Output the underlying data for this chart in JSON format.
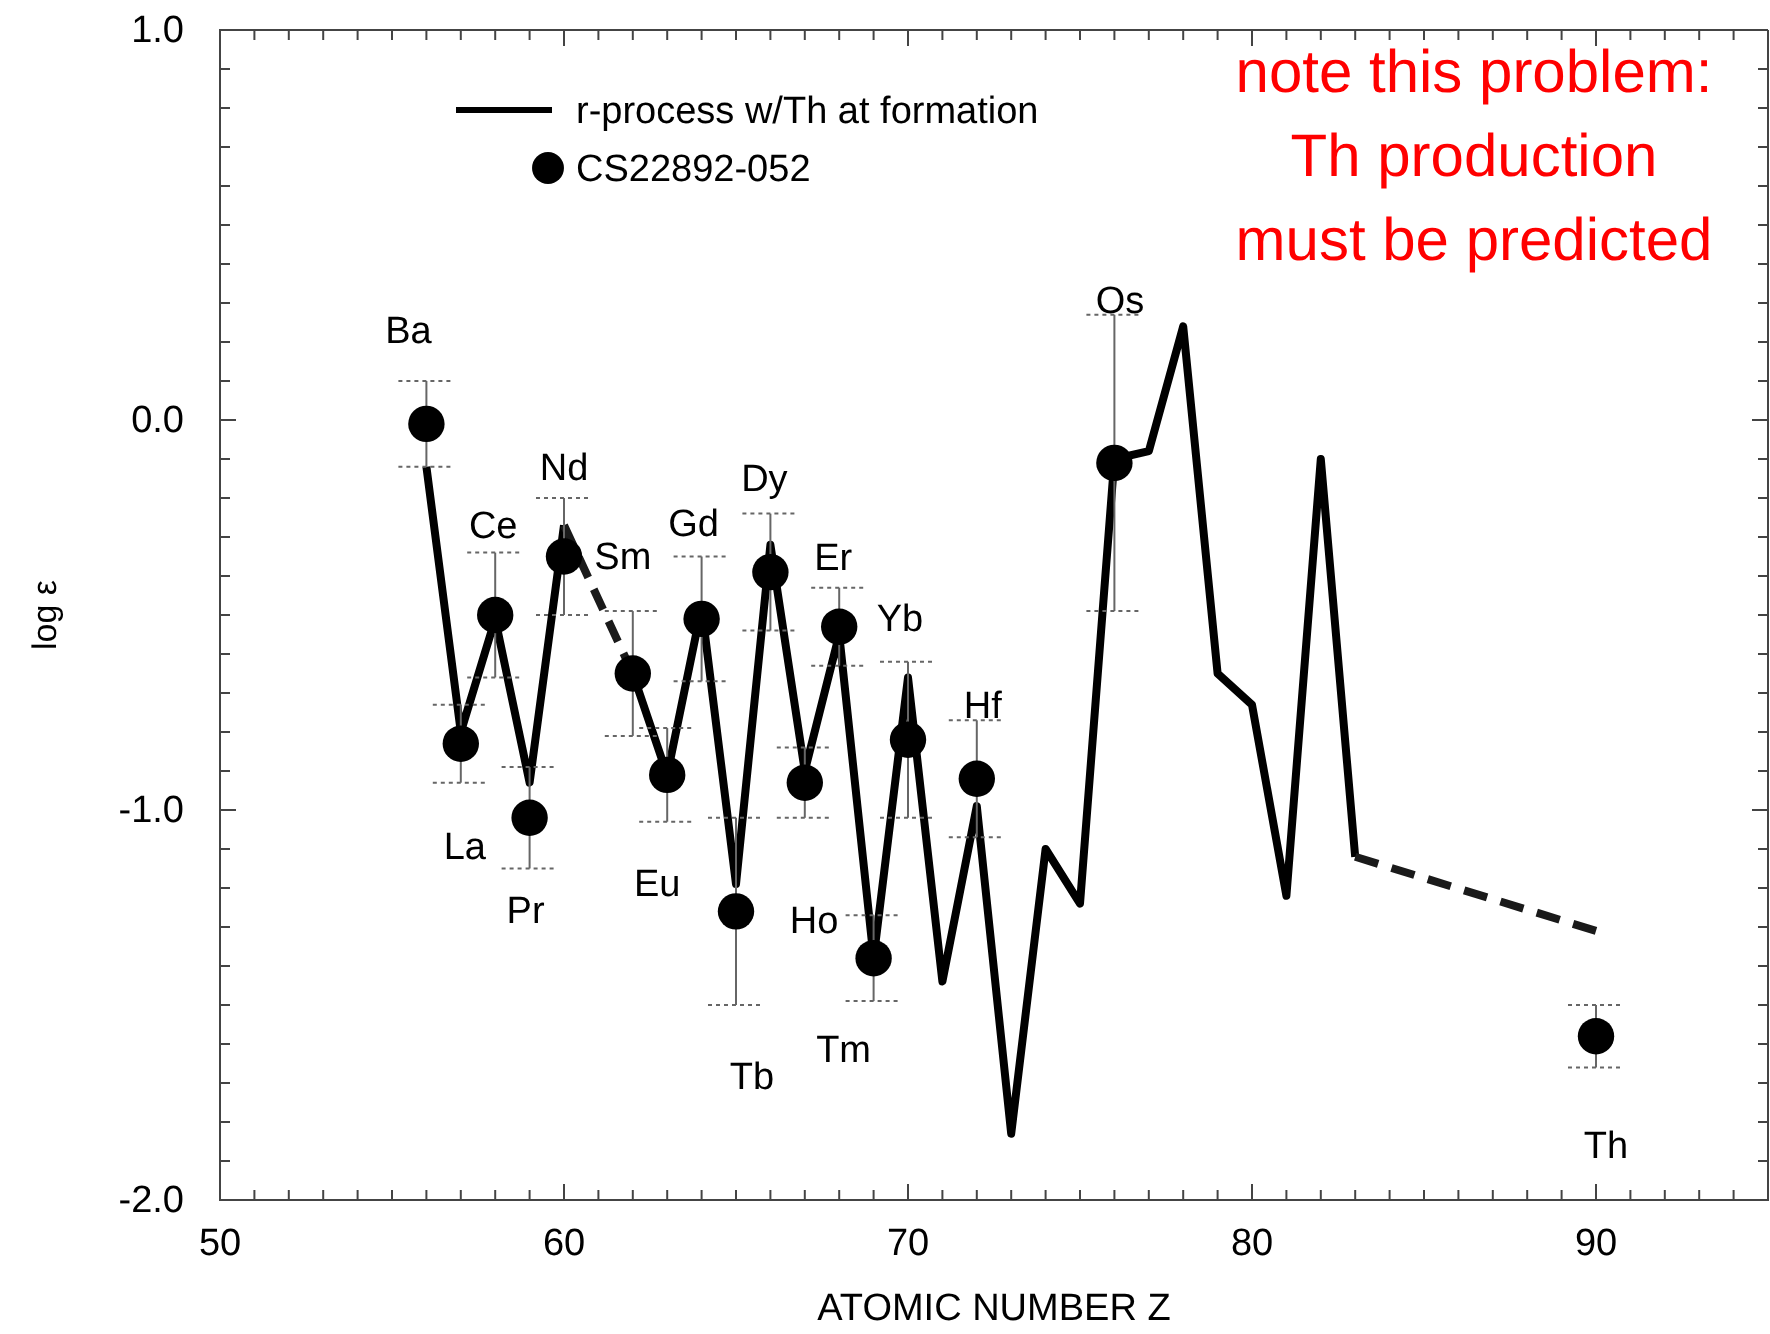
{
  "chart_data": {
    "type": "line",
    "xlabel": "ATOMIC NUMBER Z",
    "ylabel": "log ε",
    "xlim": [
      50,
      95
    ],
    "ylim": [
      -2,
      1
    ],
    "xticks": [
      50,
      {
        "value": 51,
        "label": null
      },
      {
        "value": 52,
        "label": null
      },
      {
        "value": 53,
        "label": null
      },
      {
        "value": 54,
        "label": null
      },
      {
        "value": 55,
        "label": null
      },
      {
        "value": 56,
        "label": null
      },
      {
        "value": 57,
        "label": null
      },
      {
        "value": 58,
        "label": null
      },
      {
        "value": 59,
        "label": null
      },
      60,
      {
        "value": 61,
        "label": null
      },
      {
        "value": 62,
        "label": null
      },
      {
        "value": 63,
        "label": null
      },
      {
        "value": 64,
        "label": null
      },
      {
        "value": 65,
        "label": null
      },
      {
        "value": 66,
        "label": null
      },
      {
        "value": 67,
        "label": null
      },
      {
        "value": 68,
        "label": null
      },
      {
        "value": 69,
        "label": null
      },
      70,
      {
        "value": 71,
        "label": null
      },
      {
        "value": 72,
        "label": null
      },
      {
        "value": 73,
        "label": null
      },
      {
        "value": 74,
        "label": null
      },
      {
        "value": 75,
        "label": null
      },
      {
        "value": 76,
        "label": null
      },
      {
        "value": 77,
        "label": null
      },
      {
        "value": 78,
        "label": null
      },
      {
        "value": 79,
        "label": null
      },
      80,
      {
        "value": 81,
        "label": null
      },
      {
        "value": 82,
        "label": null
      },
      {
        "value": 83,
        "label": null
      },
      {
        "value": 84,
        "label": null
      },
      {
        "value": 85,
        "label": null
      },
      {
        "value": 86,
        "label": null
      },
      {
        "value": 87,
        "label": null
      },
      {
        "value": 88,
        "label": null
      },
      {
        "value": 89,
        "label": null
      },
      90,
      {
        "value": 91,
        "label": null
      },
      {
        "value": 92,
        "label": null
      },
      {
        "value": 93,
        "label": null
      },
      {
        "value": 94,
        "label": null
      },
      {
        "value": 95,
        "label": null
      }
    ],
    "yticks": [
      {
        "value": -2,
        "label": "-2.0"
      },
      {
        "value": -1.9,
        "label": null
      },
      {
        "value": -1.8,
        "label": null
      },
      {
        "value": -1.7,
        "label": null
      },
      {
        "value": -1.6,
        "label": null
      },
      {
        "value": -1.5,
        "label": null
      },
      {
        "value": -1.4,
        "label": null
      },
      {
        "value": -1.3,
        "label": null
      },
      {
        "value": -1.2,
        "label": null
      },
      {
        "value": -1.1,
        "label": null
      },
      {
        "value": -1,
        "label": "-1.0"
      },
      {
        "value": -0.9,
        "label": null
      },
      {
        "value": -0.8,
        "label": null
      },
      {
        "value": -0.7,
        "label": null
      },
      {
        "value": -0.6,
        "label": null
      },
      {
        "value": -0.5,
        "label": null
      },
      {
        "value": -0.4,
        "label": null
      },
      {
        "value": -0.3,
        "label": null
      },
      {
        "value": -0.2,
        "label": null
      },
      {
        "value": -0.1,
        "label": null
      },
      {
        "value": 0,
        "label": "0.0"
      },
      {
        "value": 0.1,
        "label": null
      },
      {
        "value": 0.2,
        "label": null
      },
      {
        "value": 0.3,
        "label": null
      },
      {
        "value": 0.4,
        "label": null
      },
      {
        "value": 0.5,
        "label": null
      },
      {
        "value": 0.6,
        "label": null
      },
      {
        "value": 0.7,
        "label": null
      },
      {
        "value": 0.8,
        "label": null
      },
      {
        "value": 0.9,
        "label": null
      },
      {
        "value": 1,
        "label": "1.0"
      }
    ],
    "grid": false,
    "legend": "top",
    "series": [
      {
        "name": "r-process w/Th at formation",
        "color": "#000000",
        "line_style": "solid",
        "marker": "none",
        "x": [
          56,
          57,
          58,
          59,
          60,
          61,
          62,
          63,
          64,
          65,
          66,
          67,
          68,
          69,
          70,
          71,
          72,
          73,
          74,
          75,
          76,
          77,
          78,
          79,
          80,
          81,
          82,
          83
        ],
        "values": [
          -0.12,
          -0.8,
          -0.51,
          -0.93,
          -0.27,
          null,
          -0.65,
          -0.91,
          -0.48,
          -1.19,
          -0.32,
          -0.9,
          -0.55,
          -1.38,
          -0.66,
          -1.44,
          -0.99,
          -1.83,
          -1.1,
          -1.24,
          -0.1,
          -0.08,
          0.24,
          -0.65,
          -0.73,
          -1.22,
          -0.1,
          -1.12
        ]
      },
      {
        "color": "#1a1a1a",
        "line_style": "dashed",
        "marker": "none",
        "x": [
          60,
          62
        ],
        "values": [
          -0.27,
          -0.65
        ]
      },
      {
        "color": "#1a1a1a",
        "line_style": "dashed",
        "marker": "none",
        "x": [
          83,
          90
        ],
        "values": [
          -1.12,
          -1.31
        ]
      },
      {
        "name": "CS22892-052",
        "type": "scatter",
        "color": "#000000",
        "marker": "circle",
        "x": [
          56,
          57,
          58,
          59,
          60,
          62,
          63,
          64,
          65,
          66,
          67,
          68,
          69,
          70,
          72,
          76,
          90
        ],
        "values": [
          -0.01,
          -0.83,
          -0.5,
          -1.02,
          -0.35,
          -0.65,
          -0.91,
          -0.51,
          -1.26,
          -0.39,
          -0.93,
          -0.53,
          -1.38,
          -0.82,
          -0.92,
          -0.11,
          -1.58
        ],
        "errors": [
          0.11,
          0.1,
          0.16,
          0.13,
          0.15,
          0.16,
          0.12,
          0.16,
          0.24,
          0.15,
          0.09,
          0.1,
          0.11,
          0.2,
          0.15,
          0.38,
          0.08
        ]
      }
    ],
    "annotations": [
      {
        "text": "Ba",
        "x": 56,
        "y": -0.01
      },
      {
        "text": "La",
        "x": 57,
        "y": -0.83
      },
      {
        "text": "Ce",
        "x": 58,
        "y": -0.5
      },
      {
        "text": "Pr",
        "x": 59,
        "y": -1.02
      },
      {
        "text": "Nd",
        "x": 60,
        "y": -0.35
      },
      {
        "text": "Sm",
        "x": 62,
        "y": -0.65
      },
      {
        "text": "Eu",
        "x": 63,
        "y": -0.91
      },
      {
        "text": "Gd",
        "x": 64,
        "y": -0.51
      },
      "Tb",
      {
        "text": "Dy",
        "x": 66,
        "y": -0.39
      },
      "Ho",
      {
        "text": "Er",
        "x": 68,
        "y": -0.53
      },
      {
        "text": "Tm",
        "x": 69,
        "y": -1.38
      },
      {
        "text": "Yb",
        "x": 70,
        "y": -0.82
      },
      {
        "text": "Hf",
        "x": 72,
        "y": -0.92
      },
      "Os",
      {
        "text": "Th",
        "x": 90,
        "y": -1.58
      },
      "note this problem:\nTh production\nmust be predicted"
    ]
  }
}
